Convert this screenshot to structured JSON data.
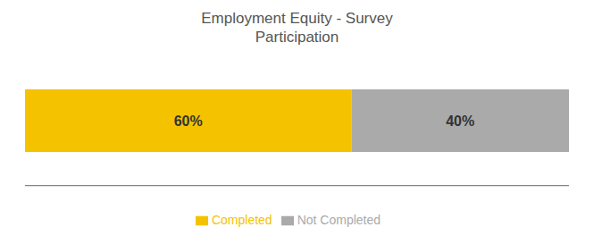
{
  "chart_data": {
    "type": "bar",
    "title": "Employment Equity - Survey\nParticipation",
    "orientation": "horizontal",
    "stacked": true,
    "categories": [
      null
    ],
    "series": [
      {
        "name": "Completed",
        "color": "#F5C200",
        "values": [
          60
        ],
        "value_labels": [
          "60%"
        ]
      },
      {
        "name": "Not Completed",
        "color": "#AAAAAA",
        "values": [
          40
        ],
        "value_labels": [
          "40%"
        ]
      }
    ],
    "xlim": [
      0,
      100
    ],
    "tick_labels": false,
    "data_labels": true,
    "legend": "bottom",
    "grid": false
  }
}
